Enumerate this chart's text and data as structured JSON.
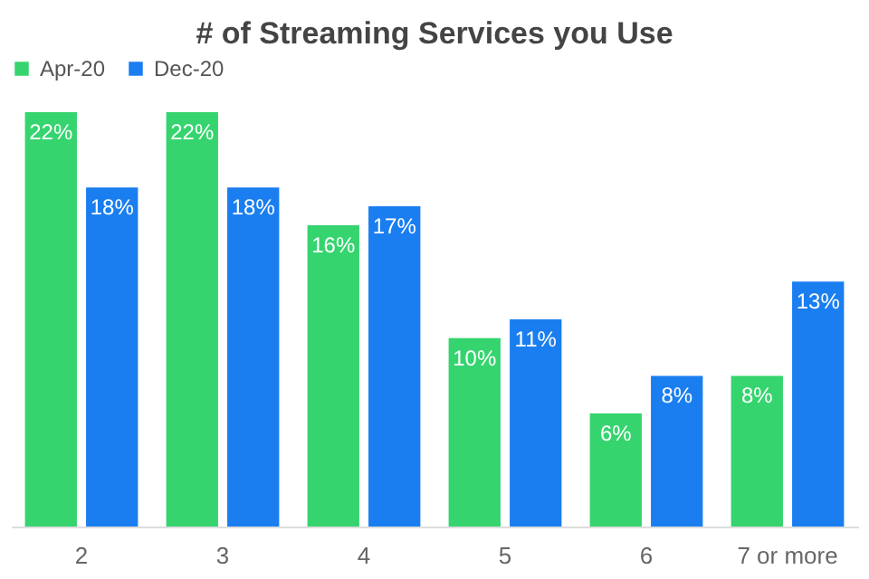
{
  "chart_data": {
    "type": "bar",
    "title": "# of Streaming Services you Use",
    "categories": [
      "2",
      "3",
      "4",
      "5",
      "6",
      "7 or more"
    ],
    "series": [
      {
        "name": "Apr-20",
        "color": "#35d46f",
        "values": [
          22,
          22,
          16,
          10,
          6,
          8
        ],
        "value_labels": [
          "22%",
          "22%",
          "16%",
          "10%",
          "6%",
          "8%"
        ]
      },
      {
        "name": "Dec-20",
        "color": "#1a7ef0",
        "values": [
          18,
          18,
          17,
          11,
          8,
          13
        ],
        "value_labels": [
          "18%",
          "18%",
          "17%",
          "11%",
          "8%",
          "13%"
        ]
      }
    ],
    "legend": "top",
    "grid": false
  }
}
